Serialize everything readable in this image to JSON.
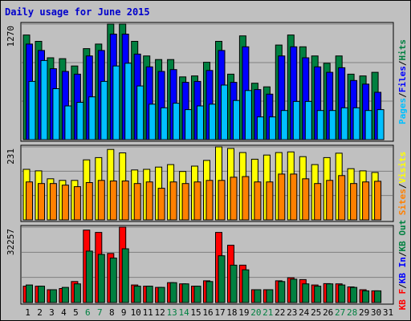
{
  "title": "Daily usage for June 2015",
  "colors": {
    "hits": "#008040",
    "files": "#0000ff",
    "pages": "#00c0ff",
    "visits": "#ffff00",
    "sites": "#ff8000",
    "kb_in": "#008040",
    "kb_out": "#0000ff",
    "kb_f": "#ff0000",
    "weekend_label": "#008040",
    "weekday_label": "#000000",
    "separator": "#000000"
  },
  "chart_data": [
    {
      "type": "bar",
      "panel": "hits-files-pages",
      "y_max_label": "1270",
      "ylim": [
        0,
        1270
      ],
      "right_axis_labels": [
        {
          "text": "Pages",
          "color": "#00c0ff"
        },
        {
          "text": "/",
          "color": "#000000"
        },
        {
          "text": "Files",
          "color": "#0000ff"
        },
        {
          "text": "/",
          "color": "#000000"
        },
        {
          "text": "Hits",
          "color": "#008040"
        }
      ],
      "categories": [
        "1",
        "2",
        "3",
        "4",
        "5",
        "6",
        "7",
        "8",
        "9",
        "10",
        "11",
        "12",
        "13",
        "14",
        "15",
        "16",
        "17",
        "18",
        "19",
        "20",
        "21",
        "22",
        "23",
        "24",
        "25",
        "26",
        "27",
        "28",
        "29",
        "30",
        "31"
      ],
      "series": [
        {
          "name": "Hits",
          "color": "#008040",
          "values": [
            1150,
            1080,
            900,
            890,
            810,
            1000,
            1050,
            1270,
            1270,
            1080,
            920,
            880,
            880,
            690,
            700,
            850,
            1080,
            720,
            1140,
            620,
            580,
            1040,
            1150,
            1020,
            920,
            840,
            920,
            720,
            700,
            740,
            null
          ]
        },
        {
          "name": "Files",
          "color": "#0000ff",
          "values": [
            1050,
            980,
            780,
            750,
            720,
            920,
            980,
            1160,
            1160,
            940,
            800,
            750,
            770,
            630,
            640,
            760,
            980,
            630,
            1020,
            550,
            500,
            920,
            1020,
            900,
            800,
            740,
            790,
            650,
            610,
            520,
            null
          ]
        },
        {
          "name": "Pages",
          "color": "#00c0ff",
          "values": [
            640,
            870,
            560,
            370,
            410,
            470,
            640,
            810,
            840,
            590,
            390,
            350,
            400,
            330,
            370,
            390,
            600,
            430,
            540,
            250,
            250,
            320,
            420,
            420,
            320,
            320,
            350,
            350,
            320,
            330,
            null
          ]
        }
      ]
    },
    {
      "type": "bar",
      "panel": "visits-sites",
      "y_max_label": "231",
      "ylim": [
        0,
        231
      ],
      "right_axis_labels": [
        {
          "text": "Sites",
          "color": "#ff8000"
        },
        {
          "text": "/",
          "color": "#000000"
        },
        {
          "text": "Visits",
          "color": "#ffff00"
        }
      ],
      "categories": [
        "1",
        "2",
        "3",
        "4",
        "5",
        "6",
        "7",
        "8",
        "9",
        "10",
        "11",
        "12",
        "13",
        "14",
        "15",
        "16",
        "17",
        "18",
        "19",
        "20",
        "21",
        "22",
        "23",
        "24",
        "25",
        "26",
        "27",
        "28",
        "29",
        "30",
        "31"
      ],
      "series": [
        {
          "name": "Visits",
          "color": "#ffff00",
          "values": [
            160,
            155,
            130,
            125,
            125,
            190,
            197,
            223,
            212,
            158,
            160,
            167,
            175,
            153,
            170,
            188,
            233,
            226,
            213,
            192,
            205,
            213,
            215,
            200,
            175,
            197,
            211,
            162,
            155,
            150,
            null
          ]
        },
        {
          "name": "Sites",
          "color": "#ff8000",
          "values": [
            120,
            115,
            115,
            110,
            105,
            118,
            125,
            123,
            123,
            115,
            120,
            100,
            120,
            115,
            120,
            125,
            125,
            135,
            137,
            120,
            120,
            145,
            145,
            130,
            115,
            125,
            140,
            115,
            120,
            122,
            null
          ]
        }
      ]
    },
    {
      "type": "bar",
      "panel": "kbytes",
      "y_max_label": "32257",
      "ylim": [
        0,
        32257
      ],
      "right_axis_labels": [
        {
          "text": "KB F",
          "color": "#ff0000"
        },
        {
          "text": "/",
          "color": "#000000"
        },
        {
          "text": "KB In",
          "color": "#0000ff"
        },
        {
          "text": "/",
          "color": "#000000"
        },
        {
          "text": "KB Out",
          "color": "#008040"
        }
      ],
      "categories": [
        "1",
        "2",
        "3",
        "4",
        "5",
        "6",
        "7",
        "8",
        "9",
        "10",
        "11",
        "12",
        "13",
        "14",
        "15",
        "16",
        "17",
        "18",
        "19",
        "20",
        "21",
        "22",
        "23",
        "24",
        "25",
        "26",
        "27",
        "28",
        "29",
        "30",
        "31"
      ],
      "series": [
        {
          "name": "KB F",
          "color": "#ff0000",
          "values": [
            7000,
            7000,
            5500,
            6000,
            9000,
            31000,
            30000,
            21000,
            33000,
            7500,
            7000,
            6500,
            8500,
            8000,
            7000,
            9300,
            30000,
            24500,
            16000,
            5500,
            5500,
            9300,
            10600,
            9800,
            7500,
            8100,
            8000,
            6700,
            5500,
            5000,
            null
          ]
        },
        {
          "name": "KB Out",
          "color": "#008040",
          "values": [
            7500,
            7000,
            5500,
            6500,
            8000,
            22000,
            20600,
            19000,
            23000,
            7000,
            7000,
            6500,
            8500,
            8000,
            7000,
            9000,
            20000,
            16000,
            14000,
            5500,
            5500,
            9000,
            10000,
            8000,
            7000,
            8000,
            7500,
            6500,
            5000,
            5000,
            null
          ]
        }
      ]
    }
  ],
  "x_labels": [
    {
      "text": "1",
      "weekend": false
    },
    {
      "text": "2",
      "weekend": false
    },
    {
      "text": "3",
      "weekend": false
    },
    {
      "text": "4",
      "weekend": false
    },
    {
      "text": "5",
      "weekend": false
    },
    {
      "text": "6",
      "weekend": true
    },
    {
      "text": "7",
      "weekend": true
    },
    {
      "text": "8",
      "weekend": false
    },
    {
      "text": "9",
      "weekend": false
    },
    {
      "text": "10",
      "weekend": false
    },
    {
      "text": "11",
      "weekend": false
    },
    {
      "text": "12",
      "weekend": false
    },
    {
      "text": "13",
      "weekend": true
    },
    {
      "text": "14",
      "weekend": true
    },
    {
      "text": "15",
      "weekend": false
    },
    {
      "text": "16",
      "weekend": false
    },
    {
      "text": "17",
      "weekend": false
    },
    {
      "text": "18",
      "weekend": false
    },
    {
      "text": "19",
      "weekend": false
    },
    {
      "text": "20",
      "weekend": true
    },
    {
      "text": "21",
      "weekend": true
    },
    {
      "text": "22",
      "weekend": false
    },
    {
      "text": "23",
      "weekend": false
    },
    {
      "text": "24",
      "weekend": false
    },
    {
      "text": "25",
      "weekend": false
    },
    {
      "text": "26",
      "weekend": false
    },
    {
      "text": "27",
      "weekend": true
    },
    {
      "text": "28",
      "weekend": true
    },
    {
      "text": "29",
      "weekend": false
    },
    {
      "text": "30",
      "weekend": false
    },
    {
      "text": "31",
      "weekend": false
    }
  ]
}
